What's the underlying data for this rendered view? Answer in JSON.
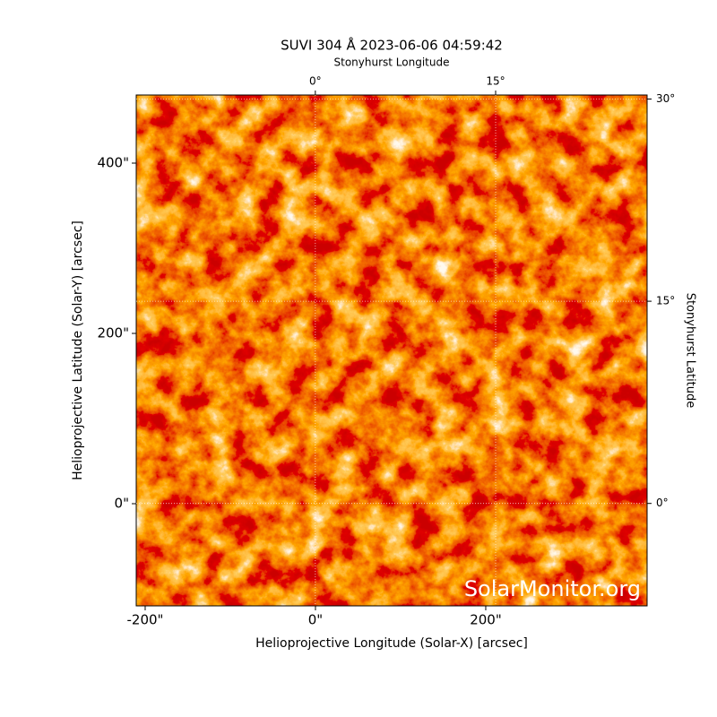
{
  "chart_data": {
    "type": "image",
    "title": "SUVI 304 Å 2023-06-06 04:59:42",
    "xlabel": "Helioprojective Longitude (Solar-X) [arcsec]",
    "ylabel": "Helioprojective Latitude (Solar-Y) [arcsec]",
    "x2label": "Stonyhurst Longitude",
    "y2label": "Stonyhurst Latitude",
    "watermark": "SolarMonitor.org",
    "xlim": [
      -210.5,
      389.5
    ],
    "ylim": [
      -120,
      480
    ],
    "xticks": [
      {
        "value": -200,
        "label": "-200\""
      },
      {
        "value": 0,
        "label": "0\""
      },
      {
        "value": 200,
        "label": "200\""
      }
    ],
    "yticks": [
      {
        "value": 0,
        "label": "0\""
      },
      {
        "value": 200,
        "label": "200\""
      },
      {
        "value": 400,
        "label": "400\""
      }
    ],
    "x2lim": [
      -14.9,
      27.6
    ],
    "y2lim": [
      -7.6,
      30.3
    ],
    "x2ticks": [
      {
        "value": 0,
        "label": "0°"
      },
      {
        "value": 15,
        "label": "15°"
      }
    ],
    "y2ticks": [
      {
        "value": 0,
        "label": "0°"
      },
      {
        "value": 15,
        "label": "15°"
      },
      {
        "value": 30,
        "label": "30°"
      }
    ],
    "grid": true
  }
}
